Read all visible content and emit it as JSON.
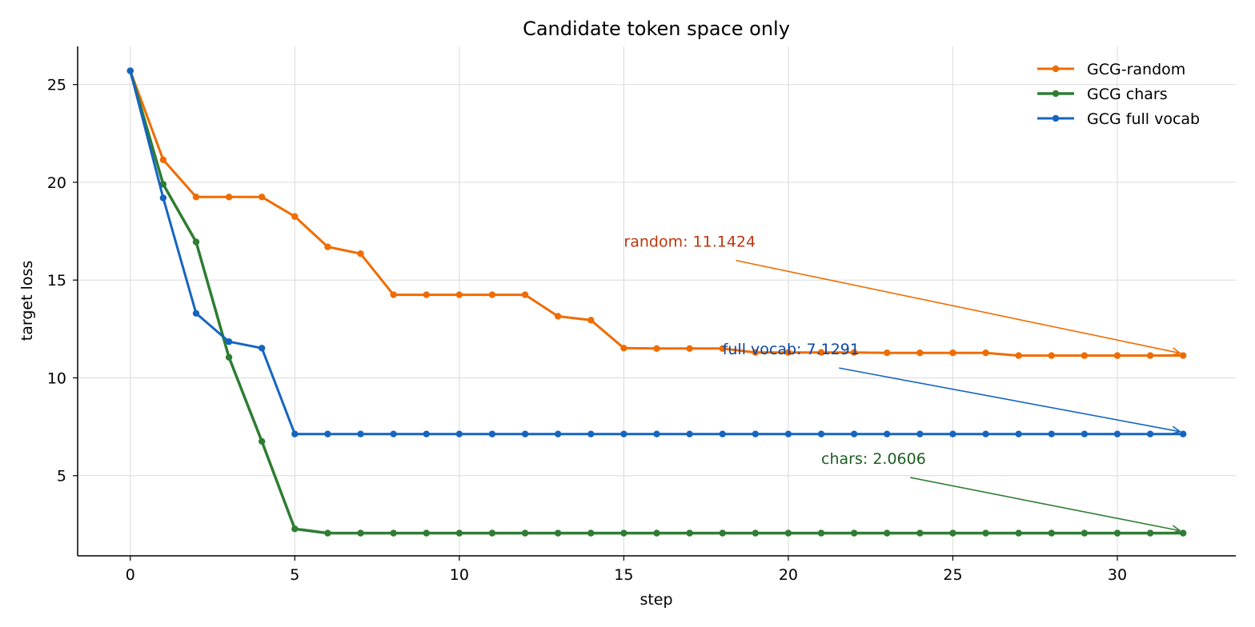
{
  "chart_data": {
    "type": "line",
    "title": "Candidate token space only",
    "xlabel": "step",
    "ylabel": "target loss",
    "xlim": [
      -1.6,
      33.6
    ],
    "ylim": [
      0.9,
      26.95
    ],
    "xticks": [
      0,
      5,
      10,
      15,
      20,
      25,
      30
    ],
    "yticks": [
      5,
      10,
      15,
      20,
      25
    ],
    "grid": true,
    "legend_position": "top-right",
    "x": [
      0,
      1,
      2,
      3,
      4,
      5,
      6,
      7,
      8,
      9,
      10,
      11,
      12,
      13,
      14,
      15,
      16,
      17,
      18,
      19,
      20,
      21,
      22,
      23,
      24,
      25,
      26,
      27,
      28,
      29,
      30,
      31,
      32
    ],
    "series": [
      {
        "name": "GCG-random",
        "color": "#ef6c00",
        "width": 3,
        "values": [
          25.7,
          21.15,
          19.25,
          19.25,
          19.25,
          18.25,
          16.7,
          16.35,
          14.25,
          14.25,
          14.25,
          14.25,
          14.25,
          13.15,
          12.95,
          11.52,
          11.5,
          11.5,
          11.5,
          11.3,
          11.3,
          11.3,
          11.3,
          11.28,
          11.28,
          11.28,
          11.28,
          11.14,
          11.14,
          11.14,
          11.14,
          11.14,
          11.1424
        ]
      },
      {
        "name": "GCG chars",
        "color": "#2e7d32",
        "width": 3.5,
        "values": [
          25.7,
          19.9,
          16.95,
          11.05,
          6.75,
          2.28,
          2.06,
          2.06,
          2.06,
          2.06,
          2.06,
          2.06,
          2.06,
          2.06,
          2.06,
          2.06,
          2.06,
          2.06,
          2.06,
          2.06,
          2.06,
          2.06,
          2.06,
          2.06,
          2.06,
          2.06,
          2.06,
          2.06,
          2.06,
          2.06,
          2.06,
          2.06,
          2.0606
        ]
      },
      {
        "name": "GCG full vocab",
        "color": "#1565c0",
        "width": 3,
        "values": [
          25.7,
          19.2,
          13.3,
          11.85,
          11.52,
          7.13,
          7.13,
          7.13,
          7.13,
          7.13,
          7.13,
          7.13,
          7.13,
          7.13,
          7.13,
          7.13,
          7.13,
          7.13,
          7.13,
          7.13,
          7.13,
          7.13,
          7.13,
          7.13,
          7.13,
          7.13,
          7.13,
          7.13,
          7.13,
          7.13,
          7.13,
          7.13,
          7.1291
        ]
      }
    ],
    "annotations": [
      {
        "text": "random: 11.1424",
        "color": "#bf360c",
        "arrow_color": "#ef6c00",
        "text_xy": [
          15,
          16.7
        ],
        "target_xy": [
          32,
          11.1424
        ]
      },
      {
        "text": "full vocab: 7.1291",
        "color": "#0d47a1",
        "arrow_color": "#1565c0",
        "text_xy": [
          18,
          11.2
        ],
        "target_xy": [
          32,
          7.1291
        ]
      },
      {
        "text": "chars: 2.0606",
        "color": "#1b5e20",
        "arrow_color": "#2e7d32",
        "text_xy": [
          21,
          5.6
        ],
        "target_xy": [
          32,
          2.0606
        ]
      }
    ]
  }
}
